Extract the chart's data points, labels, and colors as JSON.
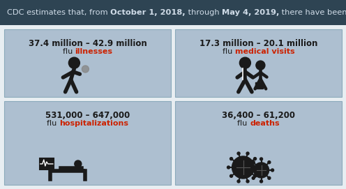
{
  "header_bg": "#2e4453",
  "header_text_color": "#d0dce8",
  "card_bg": "#adbfd0",
  "card_border": "#8aaabb",
  "text_dark": "#1a1a1a",
  "text_red": "#cc2200",
  "fig_bg": "#e8eef2",
  "header_parts": [
    [
      "CDC estimates that, from ",
      false
    ],
    [
      "October 1, 2018,",
      true
    ],
    [
      " through ",
      false
    ],
    [
      "May 4, 2019,",
      true
    ],
    [
      " there have been:",
      false
    ]
  ],
  "cards": [
    {
      "range_text": "37.4 million – 42.9 million",
      "flu_text": "flu ",
      "colored_text": "illnesses",
      "col": 0,
      "row": 1
    },
    {
      "range_text": "17.3 million – 20.1 million",
      "flu_text": "flu ",
      "colored_text": "medical visits",
      "col": 1,
      "row": 1
    },
    {
      "range_text": "531,000 – 647,000",
      "flu_text": "flu ",
      "colored_text": "hospitalizations",
      "col": 0,
      "row": 0
    },
    {
      "range_text": "36,400 – 61,200",
      "flu_text": "flu ",
      "colored_text": "deaths",
      "col": 1,
      "row": 0
    }
  ],
  "fig_width": 4.96,
  "fig_height": 2.71,
  "dpi": 100
}
